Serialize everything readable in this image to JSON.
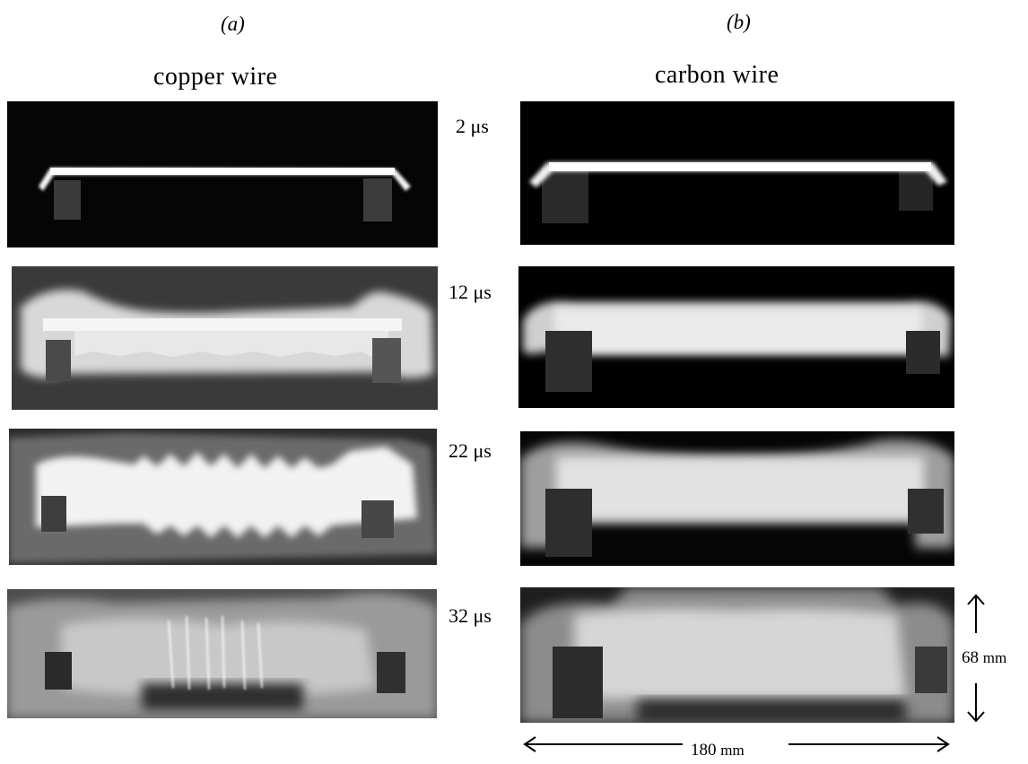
{
  "panels": {
    "a": {
      "label": "(a)",
      "title": "copper wire"
    },
    "b": {
      "label": "(b)",
      "title": "carbon wire"
    }
  },
  "times": [
    "2 μs",
    "12 μs",
    "22 μs",
    "32 μs"
  ],
  "dimensions": {
    "height": {
      "value": "68",
      "unit": "mm"
    },
    "width": {
      "value": "180",
      "unit": "mm"
    }
  },
  "images": {
    "copper": [
      "copper wire at 2 μs: thin bright straight wire on black background with two dark electrode blocks at the ends",
      "copper wire at 12 μs: broadening luminous channel with rippled edges",
      "copper wire at 22 μs: strongly striated bright plasma column with periodic bulges",
      "copper wire at 32 μs: diffuse grey expanding cloud with bright striations in the middle"
    ],
    "carbon": [
      "carbon wire at 2 μs: thin bright straight wire on black background with two dark electrode blocks",
      "carbon wire at 12 μs: smooth uniform bright channel",
      "carbon wire at 22 μs: smooth thicker bright column",
      "carbon wire at 32 μs: wide smooth grey glow filling most of the frame"
    ]
  },
  "colors": {
    "background": "#ffffff",
    "frame": "#000000"
  }
}
